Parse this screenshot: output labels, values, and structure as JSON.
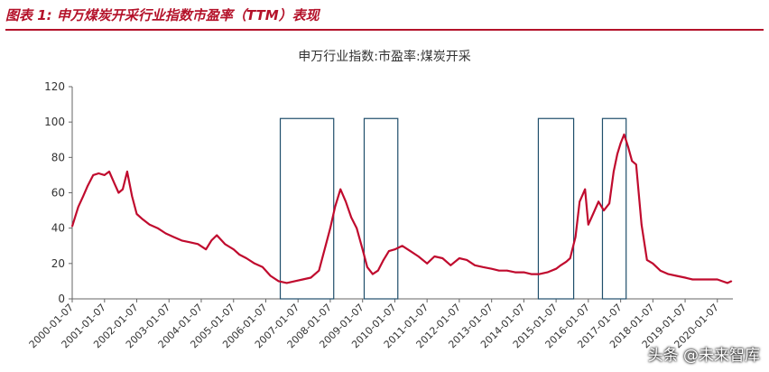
{
  "figure": {
    "label": "图表 1:  申万煤炭开采行业指数市盈率（TTM）表现"
  },
  "watermark": "头条 @未来智库",
  "colors": {
    "series": "#c00b2e",
    "box": "#1f4e6b",
    "accent": "#b4122a"
  },
  "chart_data": {
    "type": "line",
    "title": "申万行业指数:市盈率:煤炭开采",
    "xlabel": "",
    "ylabel": "",
    "ylim": [
      0,
      120
    ],
    "yticks": [
      0,
      20,
      40,
      60,
      80,
      100,
      120
    ],
    "grid": false,
    "legend": "none",
    "xticks": [
      "2000-01-07",
      "2001-01-07",
      "2002-01-07",
      "2003-01-07",
      "2004-01-07",
      "2005-01-07",
      "2006-01-07",
      "2007-01-07",
      "2008-01-07",
      "2009-01-07",
      "2010-01-07",
      "2011-01-07",
      "2012-01-07",
      "2013-01-07",
      "2014-01-07",
      "2015-01-07",
      "2016-01-07",
      "2017-01-07",
      "2018-01-07",
      "2019-01-07",
      "2020-01-07"
    ],
    "highlight_periods": [
      {
        "start": "2006-06-20",
        "end": "2008-02-15"
      },
      {
        "start": "2009-01-25",
        "end": "2010-02-10"
      },
      {
        "start": "2014-06-20",
        "end": "2015-07-25"
      },
      {
        "start": "2016-06-15",
        "end": "2017-03-10"
      }
    ],
    "series": [
      {
        "x": [
          "2000-01-07",
          "2000-03-15",
          "2000-05-10",
          "2000-07-01",
          "2000-09-01",
          "2000-11-01",
          "2001-01-07",
          "2001-03-01",
          "2001-05-01",
          "2001-06-15",
          "2001-08-01",
          "2001-09-20",
          "2001-11-15",
          "2002-01-07",
          "2002-03-15",
          "2002-06-01",
          "2002-09-01",
          "2002-12-01",
          "2003-03-01",
          "2003-06-01",
          "2003-09-01",
          "2003-12-01",
          "2004-03-01",
          "2004-05-01",
          "2004-07-01",
          "2004-10-01",
          "2005-01-07",
          "2005-03-15",
          "2005-06-01",
          "2005-09-01",
          "2005-12-01",
          "2006-03-01",
          "2006-06-01",
          "2006-09-01",
          "2006-12-01",
          "2007-03-01",
          "2007-06-01",
          "2007-09-01",
          "2007-11-15",
          "2008-01-07",
          "2008-03-01",
          "2008-05-01",
          "2008-07-01",
          "2008-09-01",
          "2008-11-01",
          "2009-01-07",
          "2009-03-01",
          "2009-05-01",
          "2009-07-01",
          "2009-09-01",
          "2009-11-01",
          "2010-01-07",
          "2010-04-01",
          "2010-07-01",
          "2010-10-01",
          "2011-01-07",
          "2011-04-01",
          "2011-07-01",
          "2011-10-01",
          "2012-01-07",
          "2012-04-01",
          "2012-07-01",
          "2012-10-01",
          "2013-01-07",
          "2013-04-01",
          "2013-07-01",
          "2013-10-01",
          "2014-01-07",
          "2014-04-01",
          "2014-07-01",
          "2014-10-01",
          "2015-01-07",
          "2015-03-01",
          "2015-05-01",
          "2015-06-15",
          "2015-07-10",
          "2015-08-15",
          "2015-10-01",
          "2015-12-01",
          "2016-01-07",
          "2016-03-01",
          "2016-05-01",
          "2016-07-01",
          "2016-09-01",
          "2016-10-20",
          "2016-12-01",
          "2017-01-07",
          "2017-02-15",
          "2017-04-01",
          "2017-05-15",
          "2017-07-01",
          "2017-09-01",
          "2017-11-01",
          "2018-01-07",
          "2018-04-01",
          "2018-07-01",
          "2018-10-01",
          "2019-01-07",
          "2019-04-01",
          "2019-07-01",
          "2019-10-01",
          "2020-01-07",
          "2020-03-01",
          "2020-05-01",
          "2020-06-15"
        ],
        "values": [
          41,
          52,
          58,
          64,
          70,
          71,
          70,
          72,
          65,
          60,
          62,
          72,
          58,
          48,
          45,
          42,
          40,
          37,
          35,
          33,
          32,
          31,
          28,
          33,
          36,
          31,
          28,
          25,
          23,
          20,
          18,
          13,
          10,
          9,
          10,
          11,
          12,
          16,
          30,
          40,
          52,
          62,
          55,
          46,
          40,
          28,
          18,
          14,
          16,
          22,
          27,
          28,
          30,
          27,
          24,
          20,
          24,
          23,
          19,
          23,
          22,
          19,
          18,
          17,
          16,
          16,
          15,
          15,
          14,
          14,
          15,
          17,
          19,
          21,
          23,
          28,
          35,
          55,
          62,
          42,
          48,
          55,
          50,
          54,
          72,
          82,
          88,
          93,
          86,
          78,
          76,
          42,
          22,
          20,
          16,
          14,
          13,
          12,
          11,
          11,
          11,
          11,
          10,
          9,
          10
        ]
      }
    ]
  }
}
